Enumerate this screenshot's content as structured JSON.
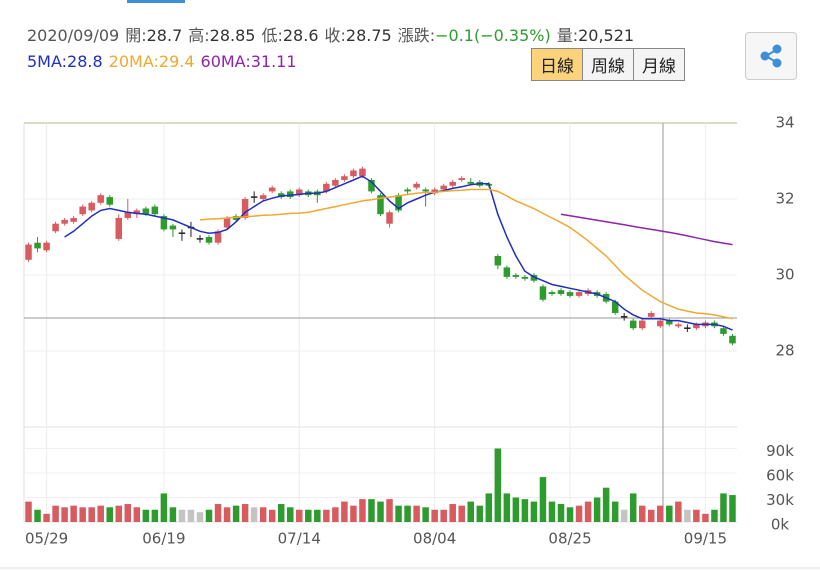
{
  "chart_data": {
    "type": "candlestick",
    "quote": {
      "date": "2020/09/09",
      "separator": ":",
      "items": [
        {
          "label": "開",
          "value": "28.7"
        },
        {
          "label": "高",
          "value": "28.85"
        },
        {
          "label": "低",
          "value": "28.6"
        },
        {
          "label": "收",
          "value": "28.75"
        },
        {
          "label": "漲跌",
          "value": "−0.1(−0.35%)",
          "color": "#2e9b2e"
        },
        {
          "label": "量",
          "value": "20,521"
        }
      ]
    },
    "periods": [
      "日線",
      "周線",
      "月線"
    ],
    "active_period": 0,
    "categories": [
      null,
      null,
      "05/29",
      null,
      null,
      null,
      null,
      null,
      null,
      null,
      null,
      null,
      null,
      null,
      null,
      "06/19",
      null,
      null,
      null,
      null,
      null,
      null,
      null,
      null,
      null,
      null,
      null,
      null,
      null,
      null,
      "07/14",
      null,
      null,
      null,
      null,
      null,
      null,
      null,
      null,
      null,
      null,
      null,
      null,
      null,
      null,
      "08/04",
      null,
      null,
      null,
      null,
      null,
      null,
      null,
      null,
      null,
      null,
      null,
      null,
      null,
      null,
      "08/25",
      null,
      null,
      null,
      null,
      null,
      null,
      null,
      null,
      null,
      null,
      null,
      null,
      null,
      null,
      "09/15",
      null,
      null,
      null
    ],
    "open": [
      30.4,
      30.85,
      30.65,
      31.15,
      31.35,
      31.4,
      31.6,
      31.7,
      31.9,
      32.05,
      30.95,
      31.5,
      31.6,
      31.75,
      31.8,
      31.55,
      31.3,
      31.1,
      31.25,
      30.95,
      31.0,
      30.85,
      31.25,
      31.55,
      31.5,
      32.05,
      32.0,
      32.2,
      32.15,
      32.2,
      32.1,
      32.2,
      32.2,
      32.2,
      32.35,
      32.5,
      32.6,
      32.6,
      32.5,
      32.1,
      31.35,
      32.1,
      32.25,
      32.3,
      32.25,
      32.15,
      32.25,
      32.35,
      32.5,
      32.45,
      32.45,
      32.4,
      30.5,
      30.2,
      30.0,
      29.95,
      30.0,
      29.7,
      29.55,
      29.6,
      29.55,
      29.45,
      29.5,
      29.55,
      29.5,
      29.3,
      28.9,
      28.8,
      28.6,
      28.9,
      28.65,
      28.8,
      28.65,
      28.6,
      28.6,
      28.65,
      28.75,
      28.6,
      28.4
    ],
    "high": [
      30.85,
      31.0,
      30.9,
      31.4,
      31.5,
      31.55,
      31.85,
      31.95,
      32.15,
      32.1,
      31.6,
      32.0,
      31.75,
      31.8,
      31.85,
      31.6,
      31.35,
      31.2,
      31.4,
      31.05,
      31.05,
      31.2,
      31.55,
      31.6,
      32.05,
      32.2,
      32.15,
      32.35,
      32.2,
      32.25,
      32.3,
      32.25,
      32.25,
      32.45,
      32.55,
      32.65,
      32.8,
      32.85,
      32.55,
      32.15,
      31.7,
      32.15,
      32.3,
      32.45,
      32.3,
      32.3,
      32.4,
      32.5,
      32.6,
      32.55,
      32.5,
      32.45,
      30.55,
      30.25,
      30.05,
      30.0,
      30.05,
      29.75,
      29.6,
      29.65,
      29.6,
      29.6,
      29.65,
      29.6,
      29.55,
      29.35,
      29.0,
      28.85,
      28.85,
      29.05,
      28.85,
      28.85,
      28.75,
      28.7,
      28.75,
      28.8,
      28.8,
      28.65,
      28.45
    ],
    "low": [
      30.35,
      30.6,
      30.6,
      31.1,
      31.3,
      31.35,
      31.55,
      31.65,
      31.85,
      31.8,
      30.9,
      31.45,
      31.5,
      31.55,
      31.55,
      31.15,
      31.0,
      30.9,
      31.0,
      30.85,
      30.8,
      30.8,
      31.2,
      31.4,
      31.45,
      31.9,
      31.95,
      32.15,
      32.0,
      32.0,
      32.05,
      32.05,
      31.9,
      32.15,
      32.3,
      32.45,
      32.55,
      32.55,
      32.15,
      31.55,
      31.25,
      31.65,
      32.1,
      32.25,
      31.8,
      32.1,
      32.2,
      32.3,
      32.45,
      32.35,
      32.3,
      32.3,
      30.15,
      29.9,
      29.9,
      29.85,
      29.8,
      29.3,
      29.45,
      29.45,
      29.4,
      29.4,
      29.45,
      29.4,
      29.25,
      28.95,
      28.8,
      28.55,
      28.55,
      28.85,
      28.6,
      28.65,
      28.6,
      28.5,
      28.55,
      28.6,
      28.6,
      28.4,
      28.15
    ],
    "close": [
      30.8,
      30.7,
      30.85,
      31.35,
      31.45,
      31.5,
      31.8,
      31.9,
      32.1,
      31.85,
      31.5,
      31.65,
      31.7,
      31.6,
      31.6,
      31.2,
      31.2,
      31.1,
      31.25,
      30.95,
      30.85,
      31.15,
      31.5,
      31.45,
      32.0,
      32.05,
      32.1,
      32.3,
      32.05,
      32.05,
      32.25,
      32.1,
      32.1,
      32.4,
      32.5,
      32.6,
      32.75,
      32.8,
      32.2,
      31.6,
      31.65,
      31.7,
      32.2,
      32.4,
      32.2,
      32.25,
      32.35,
      32.45,
      32.55,
      32.4,
      32.35,
      32.35,
      30.25,
      29.95,
      29.95,
      29.9,
      29.85,
      29.35,
      29.5,
      29.5,
      29.45,
      29.55,
      29.6,
      29.45,
      29.3,
      29.0,
      28.9,
      28.6,
      28.8,
      29.0,
      28.8,
      28.7,
      28.7,
      28.6,
      28.7,
      28.75,
      28.65,
      28.45,
      28.2
    ],
    "volume": [
      25000,
      15000,
      10000,
      20000,
      18000,
      20000,
      18000,
      18000,
      20000,
      18000,
      20000,
      22000,
      18000,
      15000,
      15000,
      35000,
      18000,
      15000,
      15000,
      12000,
      15000,
      22000,
      18000,
      20000,
      22000,
      18000,
      18000,
      15000,
      22000,
      18000,
      15000,
      15000,
      15000,
      15000,
      18000,
      25000,
      20000,
      28000,
      28000,
      25000,
      28000,
      20000,
      20000,
      20000,
      18000,
      15000,
      15000,
      22000,
      20000,
      25000,
      20000,
      35000,
      90000,
      35000,
      30000,
      28000,
      25000,
      55000,
      25000,
      22000,
      18000,
      20000,
      25000,
      30000,
      42000,
      25000,
      15000,
      35000,
      20000,
      15000,
      20000,
      20000,
      25000,
      15000,
      15000,
      10000,
      15000,
      35000,
      33000
    ],
    "up_color": "#d75b5f",
    "down_color": "#2e9b2e",
    "flat_color": "#222222",
    "flat_volume_color": "#c4c4c4",
    "series": [
      {
        "name": "5MA",
        "legend_value": "28.8",
        "color": "#1f2fbf",
        "values": [
          null,
          null,
          null,
          null,
          31.0,
          31.15,
          31.35,
          31.55,
          31.7,
          31.75,
          31.7,
          31.65,
          31.62,
          31.6,
          31.55,
          31.5,
          31.45,
          31.35,
          31.25,
          31.15,
          31.1,
          31.12,
          31.2,
          31.4,
          31.65,
          31.8,
          31.95,
          32.02,
          32.08,
          32.1,
          32.12,
          32.15,
          32.15,
          32.2,
          32.3,
          32.4,
          32.5,
          32.6,
          32.45,
          32.2,
          31.95,
          31.75,
          31.9,
          32.0,
          32.1,
          32.18,
          32.22,
          32.28,
          32.32,
          32.38,
          32.4,
          32.4,
          31.6,
          31.0,
          30.5,
          30.1,
          29.95,
          29.85,
          29.75,
          29.7,
          29.65,
          29.6,
          29.55,
          29.5,
          29.4,
          29.3,
          29.1,
          28.95,
          28.85,
          28.85,
          28.85,
          28.8,
          28.8,
          28.75,
          28.7,
          28.7,
          28.7,
          28.65,
          28.55
        ]
      },
      {
        "name": "20MA",
        "legend_value": "29.4",
        "color": "#f0a830",
        "values": [
          null,
          null,
          null,
          null,
          null,
          null,
          null,
          null,
          null,
          null,
          null,
          null,
          null,
          null,
          null,
          null,
          null,
          null,
          null,
          31.45,
          31.47,
          31.48,
          31.5,
          31.52,
          31.53,
          31.55,
          31.57,
          31.58,
          31.6,
          31.62,
          31.63,
          31.65,
          31.7,
          31.75,
          31.8,
          31.85,
          31.9,
          31.95,
          31.98,
          32.02,
          32.05,
          32.08,
          32.12,
          32.15,
          32.17,
          32.18,
          32.2,
          32.22,
          32.23,
          32.25,
          32.25,
          32.25,
          32.2,
          32.08,
          31.95,
          31.85,
          31.75,
          31.62,
          31.5,
          31.38,
          31.25,
          31.08,
          30.9,
          30.7,
          30.5,
          30.25,
          30.0,
          29.8,
          29.6,
          29.45,
          29.3,
          29.2,
          29.1,
          29.05,
          29.0,
          28.98,
          28.95,
          28.9,
          28.85
        ]
      },
      {
        "name": "60MA",
        "legend_value": "31.11",
        "color": "#8e24aa",
        "values": [
          null,
          null,
          null,
          null,
          null,
          null,
          null,
          null,
          null,
          null,
          null,
          null,
          null,
          null,
          null,
          null,
          null,
          null,
          null,
          null,
          null,
          null,
          null,
          null,
          null,
          null,
          null,
          null,
          null,
          null,
          null,
          null,
          null,
          null,
          null,
          null,
          null,
          null,
          null,
          null,
          null,
          null,
          null,
          null,
          null,
          null,
          null,
          null,
          null,
          null,
          null,
          null,
          null,
          null,
          null,
          null,
          null,
          null,
          null,
          31.6,
          31.56,
          31.52,
          31.48,
          31.44,
          31.4,
          31.36,
          31.32,
          31.28,
          31.24,
          31.2,
          31.16,
          31.12,
          31.08,
          31.03,
          30.98,
          30.93,
          30.88,
          30.84,
          30.8
        ]
      }
    ],
    "ylim": [
      26,
      34
    ],
    "yticks": [
      28,
      30,
      32,
      34
    ],
    "volume_ylim": [
      0,
      120000
    ],
    "volume_yticks": [
      {
        "value": 0,
        "label": "0k"
      },
      {
        "value": 30000,
        "label": "30k"
      },
      {
        "value": 60000,
        "label": "60k"
      },
      {
        "value": 90000,
        "label": "90k"
      }
    ],
    "grid": true
  }
}
